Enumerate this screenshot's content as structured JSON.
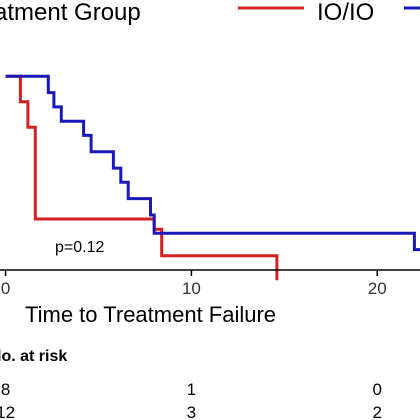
{
  "chart_data": {
    "type": "line",
    "legend": {
      "title": "atment Group",
      "placement": "top",
      "entries": [
        {
          "name": "IO/IO",
          "color": "#d42020"
        },
        {
          "name": "",
          "color": "#1a1ab8"
        }
      ]
    },
    "xlabel": "Time to Treatment Failure",
    "xlim": [
      -0.3,
      22.3
    ],
    "ylim": [
      0.05,
      1.08
    ],
    "x_ticks": [
      0,
      10,
      20
    ],
    "x_tick_labels": [
      "0",
      "10",
      "20"
    ],
    "grid": false,
    "annotation": "p=0.12",
    "series": [
      {
        "name": "IO/IO",
        "color": "#d42020",
        "points": [
          {
            "x": 0,
            "y": 1.0
          },
          {
            "x": 0.8,
            "y": 0.875
          },
          {
            "x": 1.2,
            "y": 0.75
          },
          {
            "x": 1.6,
            "y": 0.3
          },
          {
            "x": 8.0,
            "y": 0.25
          },
          {
            "x": 8.4,
            "y": 0.12
          },
          {
            "x": 14.6,
            "y": 0.0
          }
        ]
      },
      {
        "name": "",
        "color": "#1a1ab8",
        "points": [
          {
            "x": 0,
            "y": 1.0
          },
          {
            "x": 2.3,
            "y": 0.92
          },
          {
            "x": 2.6,
            "y": 0.85
          },
          {
            "x": 3.0,
            "y": 0.78
          },
          {
            "x": 4.2,
            "y": 0.71
          },
          {
            "x": 4.6,
            "y": 0.63
          },
          {
            "x": 5.8,
            "y": 0.55
          },
          {
            "x": 6.2,
            "y": 0.48
          },
          {
            "x": 6.6,
            "y": 0.4
          },
          {
            "x": 7.8,
            "y": 0.32
          },
          {
            "x": 8.0,
            "y": 0.23
          },
          {
            "x": 22.0,
            "y": 0.15
          }
        ]
      }
    ],
    "risk_table": {
      "title": "lo. at risk",
      "rows": [
        {
          "values": [
            "8",
            "1",
            "0"
          ]
        },
        {
          "values": [
            "12",
            "3",
            "2"
          ]
        }
      ]
    }
  }
}
